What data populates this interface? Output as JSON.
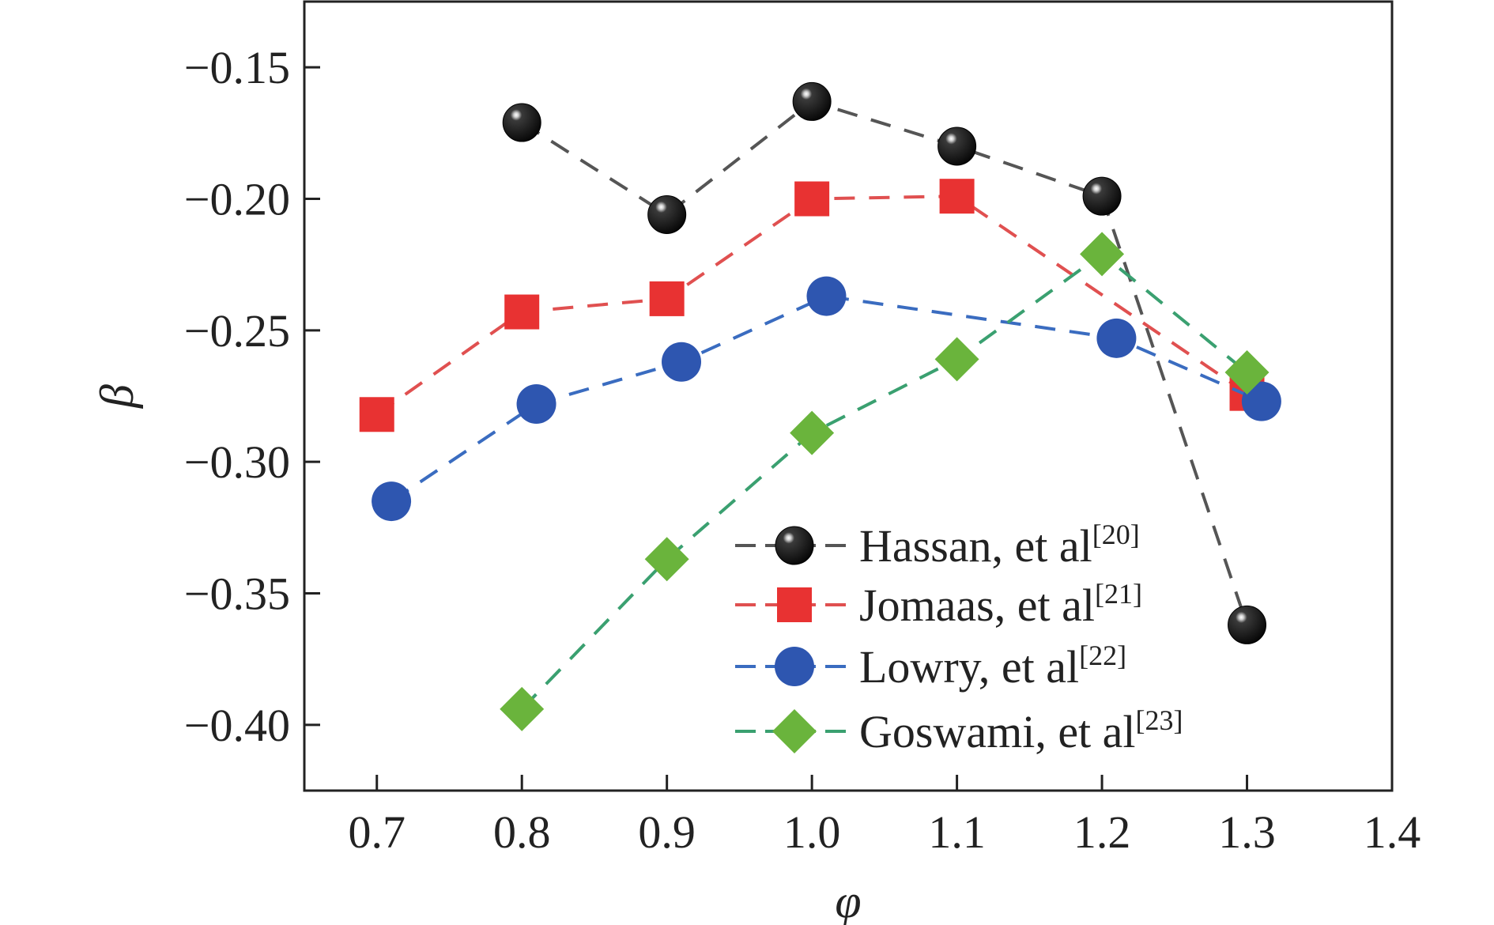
{
  "chart_data": {
    "type": "line",
    "xlabel": "φ",
    "ylabel": "β",
    "xlim": [
      0.65,
      1.4
    ],
    "ylim": [
      -0.425,
      -0.125
    ],
    "x_ticks": [
      "0.7",
      "0.8",
      "0.9",
      "1.0",
      "1.1",
      "1.2",
      "1.3",
      "1.4"
    ],
    "y_ticks": [
      "−0.15",
      "−0.20",
      "−0.25",
      "−0.30",
      "−0.35",
      "−0.40"
    ],
    "grid": false,
    "legend_position": "bottom-right",
    "series": [
      {
        "name": "Hassan, et al",
        "ref": "[20]",
        "color": "#1a1a1a",
        "line_color": "#555555",
        "marker": "sphere",
        "points": [
          [
            0.8,
            -0.171
          ],
          [
            0.9,
            -0.206
          ],
          [
            1.0,
            -0.163
          ],
          [
            1.1,
            -0.18
          ],
          [
            1.2,
            -0.199
          ],
          [
            1.3,
            -0.362
          ]
        ]
      },
      {
        "name": "Jomaas, et al",
        "ref": "[21]",
        "color": "#e83232",
        "line_color": "#e05050",
        "marker": "square",
        "points": [
          [
            0.7,
            -0.282
          ],
          [
            0.8,
            -0.243
          ],
          [
            0.9,
            -0.238
          ],
          [
            1.0,
            -0.2
          ],
          [
            1.1,
            -0.199
          ],
          [
            1.3,
            -0.274
          ]
        ]
      },
      {
        "name": "Lowry, et al",
        "ref": "[22]",
        "color": "#2e56b0",
        "line_color": "#3a6cc0",
        "marker": "circle",
        "points": [
          [
            0.71,
            -0.315
          ],
          [
            0.81,
            -0.278
          ],
          [
            0.91,
            -0.262
          ],
          [
            1.01,
            -0.237
          ],
          [
            1.21,
            -0.253
          ],
          [
            1.31,
            -0.277
          ]
        ]
      },
      {
        "name": "Goswami, et al",
        "ref": "[23]",
        "color": "#6ab43c",
        "line_color": "#3aa070",
        "marker": "diamond",
        "points": [
          [
            0.8,
            -0.394
          ],
          [
            0.9,
            -0.337
          ],
          [
            1.0,
            -0.289
          ],
          [
            1.1,
            -0.261
          ],
          [
            1.2,
            -0.221
          ],
          [
            1.3,
            -0.266
          ]
        ]
      }
    ]
  }
}
